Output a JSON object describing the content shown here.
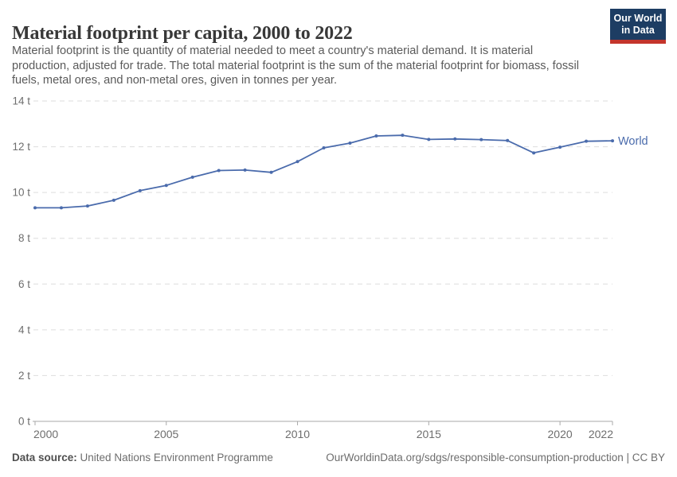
{
  "header": {
    "title": "Material footprint per capita, 2000 to 2022",
    "subtitle_lines": [
      "Material footprint is the quantity of material needed to meet a country's material demand. It is material",
      "production, adjusted for trade. The total material footprint is the sum of the material footprint for biomass, fossil",
      "fuels, metal ores, and non-metal ores, given in tonnes per year."
    ],
    "logo": {
      "line1": "Our World",
      "line2": "in Data"
    }
  },
  "chart_data": {
    "type": "line",
    "title": "Material footprint per capita, 2000 to 2022",
    "x": [
      2000,
      2001,
      2002,
      2003,
      2004,
      2005,
      2006,
      2007,
      2008,
      2009,
      2010,
      2011,
      2012,
      2013,
      2014,
      2015,
      2016,
      2017,
      2018,
      2019,
      2020,
      2021,
      2022
    ],
    "series": [
      {
        "name": "World",
        "values": [
          9.33,
          9.33,
          9.41,
          9.66,
          10.08,
          10.31,
          10.67,
          10.96,
          10.98,
          10.88,
          11.35,
          11.95,
          12.16,
          12.47,
          12.5,
          12.32,
          12.34,
          12.31,
          12.27,
          11.73,
          11.98,
          12.24,
          12.26
        ]
      }
    ],
    "unit_suffix": " t",
    "ylim": [
      0,
      14
    ],
    "ytick_step": 2,
    "xticks": [
      2000,
      2005,
      2010,
      2015,
      2020,
      2022
    ],
    "grid": "horizontal-dashed",
    "legend_position": "end-of-line"
  },
  "colors": {
    "series_blue": "#4a6bac",
    "grid": "#dddddd",
    "axis": "#a8a8a8",
    "logo_navy": "#1d3d63",
    "logo_red": "#c4352c"
  },
  "footer": {
    "source_label": "Data source:",
    "source_value": "United Nations Environment Programme",
    "citation": "OurWorldinData.org/sdgs/responsible-consumption-production | CC BY"
  }
}
